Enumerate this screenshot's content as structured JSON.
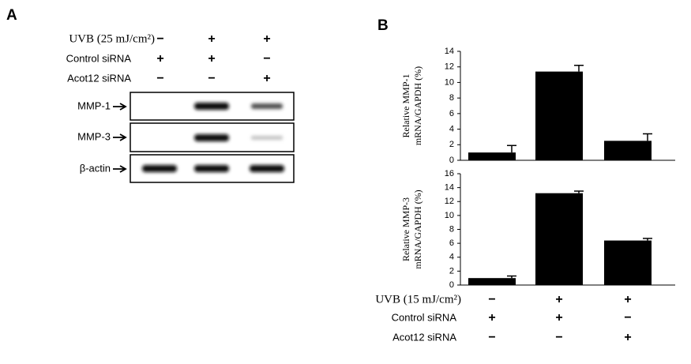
{
  "panel_a": {
    "label": "A",
    "conditions": [
      {
        "name": "UVB (25 mJ/cm²)",
        "signs": [
          "−",
          "+",
          "+"
        ]
      },
      {
        "name": "Control siRNA",
        "signs": [
          "+",
          "+",
          "−"
        ]
      },
      {
        "name": "Acot12 siRNA",
        "signs": [
          "−",
          "−",
          "+"
        ]
      }
    ],
    "blots": [
      "MMP-1",
      "MMP-3",
      "β-actin"
    ]
  },
  "panel_b": {
    "label": "B",
    "conditions": [
      {
        "name": "UVB (15 mJ/cm²)",
        "signs": [
          "−",
          "+",
          "+"
        ]
      },
      {
        "name": "Control siRNA",
        "signs": [
          "+",
          "+",
          "−"
        ]
      },
      {
        "name": "Acot12 siRNA",
        "signs": [
          "−",
          "−",
          "+"
        ]
      }
    ]
  },
  "chart_data": [
    {
      "type": "bar",
      "ylabel": [
        "Relative  MMP-1",
        "mRNA/GAPDH  (%)"
      ],
      "values": [
        1.0,
        11.4,
        2.5
      ],
      "errors": [
        0.9,
        0.8,
        0.9
      ],
      "color": "#000000",
      "ylim": [
        0,
        14
      ],
      "yticks": [
        0,
        2,
        4,
        6,
        8,
        10,
        12,
        14
      ]
    },
    {
      "type": "bar",
      "ylabel": [
        "Relative  MMP-3",
        "mRNA/GAPDH  (%)"
      ],
      "values": [
        1.0,
        13.2,
        6.4
      ],
      "errors": [
        0.3,
        0.3,
        0.3
      ],
      "color": "#000000",
      "ylim": [
        0,
        16
      ],
      "yticks": [
        0,
        2,
        4,
        6,
        8,
        10,
        12,
        14,
        16
      ]
    }
  ]
}
